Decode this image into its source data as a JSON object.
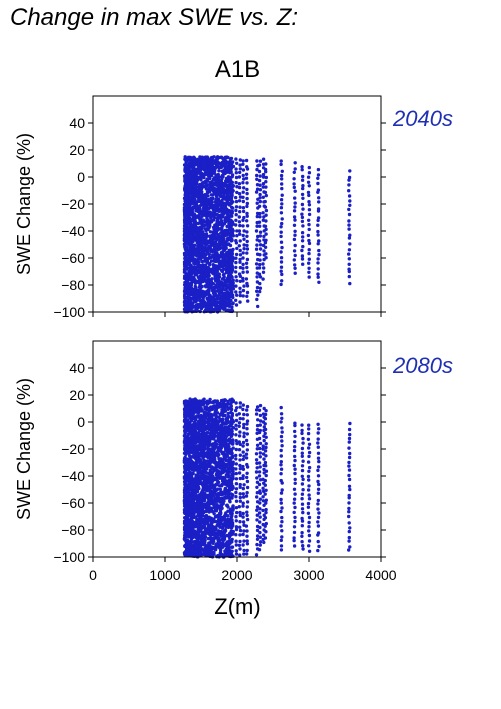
{
  "page": {
    "title": "Change in max SWE vs. Z:",
    "scenario": "A1B"
  },
  "colors": {
    "points": "#1b1fc6",
    "period_text": "#1f2fb4",
    "axis": "#000000"
  },
  "chart_data": [
    {
      "type": "scatter",
      "period_label": "2040s",
      "ylabel": "SWE Change (%)",
      "xlabel": "",
      "xlim": [
        0,
        4000
      ],
      "ylim": [
        -100,
        60
      ],
      "xticks": [
        0,
        1000,
        2000,
        3000,
        4000
      ],
      "yticks": [
        -100,
        -80,
        -60,
        -40,
        -20,
        0,
        20,
        40
      ],
      "show_xtick_labels": false,
      "grid": false,
      "dense_region": {
        "x": [
          1270,
          1950
        ],
        "y": [
          -100,
          15
        ]
      },
      "columns": [
        {
          "x": 1990,
          "y": [
            -95,
            13
          ]
        },
        {
          "x": 2040,
          "y": [
            -92,
            13
          ]
        },
        {
          "x": 2090,
          "y": [
            -88,
            12
          ]
        },
        {
          "x": 2140,
          "y": [
            -92,
            12
          ]
        },
        {
          "x": 2280,
          "y": [
            -95,
            12
          ]
        },
        {
          "x": 2320,
          "y": [
            -85,
            12
          ]
        },
        {
          "x": 2370,
          "y": [
            -75,
            13
          ]
        },
        {
          "x": 2400,
          "y": [
            -60,
            10
          ]
        },
        {
          "x": 2620,
          "y": [
            -80,
            12
          ]
        },
        {
          "x": 2800,
          "y": [
            -72,
            10
          ]
        },
        {
          "x": 2910,
          "y": [
            -65,
            8
          ]
        },
        {
          "x": 3000,
          "y": [
            -75,
            7
          ]
        },
        {
          "x": 3130,
          "y": [
            -78,
            5
          ]
        },
        {
          "x": 3560,
          "y": [
            -78,
            4
          ]
        }
      ]
    },
    {
      "type": "scatter",
      "period_label": "2080s",
      "ylabel": "SWE Change (%)",
      "xlabel": "Z(m)",
      "xlim": [
        0,
        4000
      ],
      "ylim": [
        -100,
        60
      ],
      "xticks": [
        0,
        1000,
        2000,
        3000,
        4000
      ],
      "yticks": [
        -100,
        -80,
        -60,
        -40,
        -20,
        0,
        20,
        40
      ],
      "show_xtick_labels": true,
      "grid": false,
      "dense_region": {
        "x": [
          1270,
          1950
        ],
        "y": [
          -100,
          17
        ]
      },
      "columns": [
        {
          "x": 1990,
          "y": [
            -98,
            15
          ]
        },
        {
          "x": 2040,
          "y": [
            -98,
            14
          ]
        },
        {
          "x": 2090,
          "y": [
            -98,
            13
          ]
        },
        {
          "x": 2140,
          "y": [
            -98,
            12
          ]
        },
        {
          "x": 2280,
          "y": [
            -98,
            12
          ]
        },
        {
          "x": 2320,
          "y": [
            -95,
            12
          ]
        },
        {
          "x": 2370,
          "y": [
            -90,
            10
          ]
        },
        {
          "x": 2400,
          "y": [
            -85,
            9
          ]
        },
        {
          "x": 2620,
          "y": [
            -95,
            10
          ]
        },
        {
          "x": 2800,
          "y": [
            -92,
            0
          ]
        },
        {
          "x": 2910,
          "y": [
            -95,
            -2
          ]
        },
        {
          "x": 3000,
          "y": [
            -95,
            -2
          ]
        },
        {
          "x": 3130,
          "y": [
            -95,
            -2
          ]
        },
        {
          "x": 3560,
          "y": [
            -95,
            -2
          ]
        }
      ]
    }
  ]
}
